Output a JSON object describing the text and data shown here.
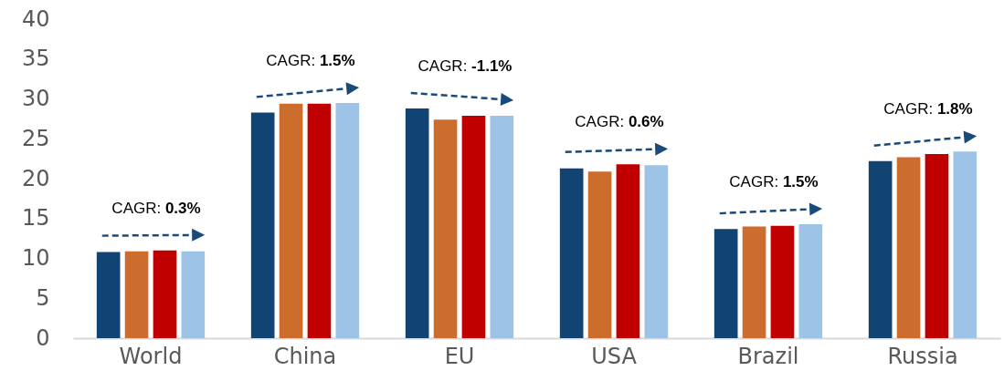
{
  "chart_data": {
    "type": "bar",
    "categories": [
      "World",
      "China",
      "EU",
      "USA",
      "Brazil",
      "Russia"
    ],
    "series": [
      {
        "color": "#124473",
        "values": [
          10.8,
          28.3,
          28.8,
          21.3,
          13.7,
          22.2
        ]
      },
      {
        "color": "#cc6d2e",
        "values": [
          10.9,
          29.4,
          27.4,
          20.9,
          14.0,
          22.7
        ]
      },
      {
        "color": "#c00000",
        "values": [
          11.0,
          29.4,
          27.9,
          21.8,
          14.1,
          23.1
        ]
      },
      {
        "color": "#9dc3e6",
        "values": [
          10.9,
          29.5,
          27.9,
          21.7,
          14.3,
          23.4
        ]
      }
    ],
    "ylim": [
      0,
      40
    ],
    "yticks": [
      0,
      5,
      10,
      15,
      20,
      25,
      30,
      35,
      40
    ],
    "annotations": [
      "CAGR: 0.3%",
      "CAGR: 1.5%",
      "CAGR: -1.1%",
      "CAGR: 0.6%",
      "CAGR: 1.5%",
      "CAGR: 1.8%"
    ]
  }
}
